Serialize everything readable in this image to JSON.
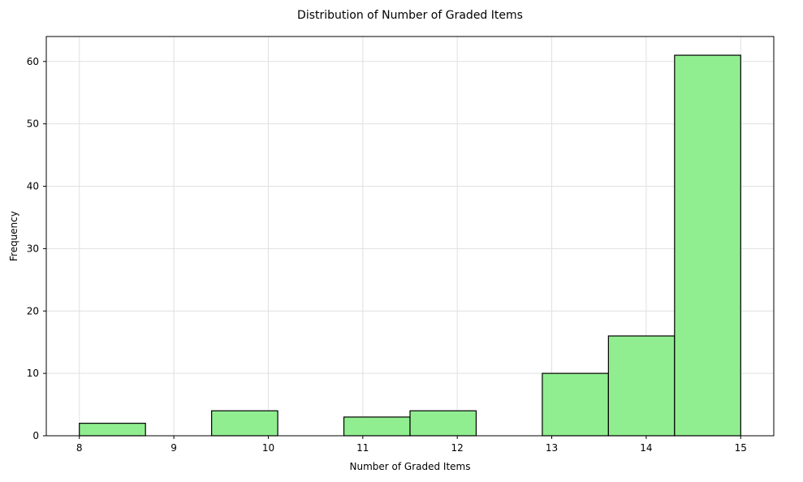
{
  "chart_data": {
    "type": "bar",
    "title": "Distribution of Number of Graded Items",
    "xlabel": "Number of Graded Items",
    "ylabel": "Frequency",
    "xlim": [
      7.65,
      15.35
    ],
    "ylim": [
      0,
      64
    ],
    "xticks": [
      8,
      9,
      10,
      11,
      12,
      13,
      14,
      15
    ],
    "yticks": [
      0,
      10,
      20,
      30,
      40,
      50,
      60
    ],
    "grid": true,
    "bar_color": "#90EE90",
    "edge_color": "#000000",
    "bins": [
      {
        "start": 8.0,
        "end": 8.7,
        "value": 2
      },
      {
        "start": 8.7,
        "end": 9.4,
        "value": 0
      },
      {
        "start": 9.4,
        "end": 10.1,
        "value": 4
      },
      {
        "start": 10.1,
        "end": 10.8,
        "value": 0
      },
      {
        "start": 10.8,
        "end": 11.5,
        "value": 3
      },
      {
        "start": 11.5,
        "end": 12.2,
        "value": 4
      },
      {
        "start": 12.2,
        "end": 12.9,
        "value": 0
      },
      {
        "start": 12.9,
        "end": 13.6,
        "value": 10
      },
      {
        "start": 13.6,
        "end": 14.3,
        "value": 16
      },
      {
        "start": 14.3,
        "end": 15.0,
        "value": 61
      }
    ]
  }
}
